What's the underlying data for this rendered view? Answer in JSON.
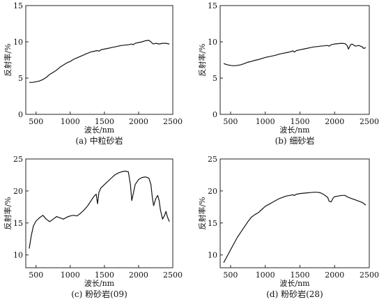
{
  "chart_data": [
    {
      "type": "line",
      "caption": "(a) 中粒砂岩",
      "xlabel": "波长/nm",
      "ylabel": "反射率/%",
      "xlim": [
        350,
        2500
      ],
      "ylim": [
        0,
        15
      ],
      "xticks": [
        500,
        1000,
        1500,
        2000,
        2500
      ],
      "yticks": [
        0,
        5,
        10,
        15
      ],
      "grid": false,
      "series": [
        {
          "x": [
            400,
            450,
            500,
            550,
            600,
            650,
            700,
            750,
            800,
            850,
            900,
            950,
            1000,
            1050,
            1100,
            1150,
            1200,
            1250,
            1300,
            1350,
            1400,
            1420,
            1450,
            1500,
            1550,
            1600,
            1650,
            1700,
            1750,
            1800,
            1850,
            1900,
            1920,
            1950,
            2000,
            2050,
            2100,
            2150,
            2180,
            2200,
            2220,
            2250,
            2300,
            2350,
            2400,
            2450
          ],
          "y": [
            4.4,
            4.4,
            4.5,
            4.6,
            4.8,
            5.1,
            5.5,
            5.8,
            6.1,
            6.5,
            6.8,
            7.1,
            7.3,
            7.6,
            7.8,
            8.0,
            8.2,
            8.4,
            8.6,
            8.7,
            8.8,
            8.7,
            8.9,
            9.0,
            9.1,
            9.2,
            9.3,
            9.4,
            9.5,
            9.55,
            9.6,
            9.7,
            9.6,
            9.8,
            9.9,
            10.0,
            10.15,
            10.2,
            10.0,
            9.8,
            9.7,
            9.8,
            9.7,
            9.8,
            9.8,
            9.7
          ]
        }
      ]
    },
    {
      "type": "line",
      "caption": "(b) 细砂岩",
      "xlabel": "波长/nm",
      "ylabel": "反射率/%",
      "xlim": [
        350,
        2500
      ],
      "ylim": [
        0,
        15
      ],
      "xticks": [
        500,
        1000,
        1500,
        2000,
        2500
      ],
      "yticks": [
        0,
        5,
        10,
        15
      ],
      "grid": false,
      "series": [
        {
          "x": [
            400,
            450,
            500,
            550,
            600,
            650,
            700,
            750,
            800,
            850,
            900,
            950,
            1000,
            1050,
            1100,
            1150,
            1200,
            1250,
            1300,
            1350,
            1400,
            1420,
            1450,
            1500,
            1550,
            1600,
            1650,
            1700,
            1750,
            1800,
            1850,
            1900,
            1920,
            1950,
            2000,
            2050,
            2100,
            2150,
            2180,
            2200,
            2210,
            2230,
            2250,
            2300,
            2350,
            2400,
            2420,
            2450
          ],
          "y": [
            7.0,
            6.85,
            6.75,
            6.7,
            6.75,
            6.85,
            7.0,
            7.2,
            7.3,
            7.45,
            7.55,
            7.7,
            7.85,
            7.95,
            8.05,
            8.15,
            8.3,
            8.4,
            8.5,
            8.6,
            8.75,
            8.6,
            8.8,
            8.9,
            9.0,
            9.1,
            9.2,
            9.3,
            9.35,
            9.4,
            9.45,
            9.5,
            9.4,
            9.6,
            9.7,
            9.75,
            9.8,
            9.75,
            9.5,
            9.0,
            9.2,
            9.6,
            9.7,
            9.4,
            9.5,
            9.3,
            9.1,
            9.2
          ]
        }
      ]
    },
    {
      "type": "line",
      "caption": "(c) 粉砂岩(09)",
      "xlabel": "波长/nm",
      "ylabel": "反射率/%",
      "xlim": [
        350,
        2500
      ],
      "ylim": [
        8,
        25
      ],
      "xticks": [
        500,
        1000,
        1500,
        2000,
        2500
      ],
      "yticks": [
        10,
        15,
        20,
        25
      ],
      "grid": false,
      "series": [
        {
          "x": [
            400,
            430,
            460,
            500,
            550,
            600,
            650,
            700,
            750,
            800,
            850,
            900,
            950,
            1000,
            1050,
            1100,
            1150,
            1200,
            1250,
            1300,
            1350,
            1380,
            1400,
            1420,
            1450,
            1500,
            1550,
            1600,
            1650,
            1700,
            1750,
            1800,
            1850,
            1880,
            1900,
            1920,
            1950,
            2000,
            2050,
            2100,
            2150,
            2180,
            2200,
            2220,
            2250,
            2280,
            2300,
            2320,
            2350,
            2380,
            2400,
            2420,
            2450
          ],
          "y": [
            11.0,
            13.0,
            14.5,
            15.3,
            15.8,
            16.2,
            15.6,
            15.2,
            15.6,
            16.0,
            15.8,
            15.6,
            15.9,
            16.1,
            16.2,
            16.1,
            16.5,
            17.0,
            17.6,
            18.4,
            19.2,
            19.5,
            18.0,
            19.8,
            20.5,
            21.0,
            21.5,
            22.0,
            22.5,
            22.8,
            23.0,
            23.1,
            23.0,
            21.0,
            18.5,
            19.5,
            21.0,
            21.8,
            22.1,
            22.2,
            22.0,
            21.0,
            19.0,
            17.7,
            18.8,
            19.3,
            18.5,
            17.0,
            15.6,
            16.2,
            16.8,
            16.0,
            15.2
          ]
        }
      ]
    },
    {
      "type": "line",
      "caption": "(d) 粉砂岩(28)",
      "xlabel": "波长/nm",
      "ylabel": "反射率/%",
      "xlim": [
        350,
        2500
      ],
      "ylim": [
        8,
        25
      ],
      "xticks": [
        500,
        1000,
        1500,
        2000,
        2500
      ],
      "yticks": [
        10,
        15,
        20,
        25
      ],
      "grid": false,
      "series": [
        {
          "x": [
            400,
            450,
            500,
            550,
            600,
            650,
            700,
            750,
            800,
            850,
            900,
            950,
            1000,
            1050,
            1100,
            1150,
            1200,
            1250,
            1300,
            1350,
            1400,
            1420,
            1450,
            1500,
            1550,
            1600,
            1650,
            1700,
            1750,
            1800,
            1850,
            1900,
            1920,
            1950,
            1980,
            2000,
            2050,
            2100,
            2150,
            2200,
            2250,
            2300,
            2350,
            2400,
            2450
          ],
          "y": [
            8.8,
            9.8,
            10.8,
            11.8,
            12.8,
            13.6,
            14.4,
            15.2,
            15.9,
            16.3,
            16.6,
            17.1,
            17.6,
            17.9,
            18.2,
            18.5,
            18.8,
            19.0,
            19.2,
            19.3,
            19.4,
            19.3,
            19.5,
            19.6,
            19.65,
            19.7,
            19.75,
            19.8,
            19.8,
            19.7,
            19.4,
            19.0,
            18.4,
            18.3,
            18.9,
            19.1,
            19.2,
            19.3,
            19.3,
            19.0,
            18.8,
            18.6,
            18.4,
            18.2,
            17.8
          ]
        }
      ]
    }
  ]
}
